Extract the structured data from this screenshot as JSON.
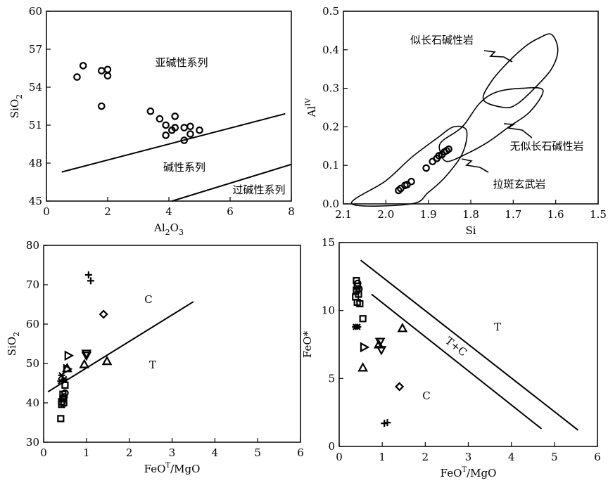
{
  "chart_data": [
    {
      "id": "a",
      "type": "scatter",
      "title": "",
      "xlim": [
        0,
        8
      ],
      "ylim": [
        45,
        60
      ],
      "xticks": [
        "0",
        "2",
        "4",
        "6",
        "8"
      ],
      "yticks": [
        "45",
        "48",
        "51",
        "54",
        "57",
        "60"
      ],
      "xlabel": {
        "base": "Al",
        "sub": "2",
        "mid": "O",
        "sub2": "3"
      },
      "ylabel": {
        "base": "SiO",
        "sub": "2"
      },
      "annotations": [
        "亚碱性系列",
        "碱性系列",
        "过碱性系列"
      ],
      "lines": [
        [
          [
            0.5,
            47.3
          ],
          [
            7.8,
            51.9
          ]
        ],
        [
          [
            4.1,
            45.0
          ],
          [
            8.0,
            47.9
          ]
        ]
      ],
      "points": [
        [
          1.0,
          54.8
        ],
        [
          1.2,
          55.7
        ],
        [
          1.8,
          55.3
        ],
        [
          2.0,
          55.4
        ],
        [
          2.0,
          54.9
        ],
        [
          1.8,
          52.5
        ],
        [
          3.4,
          52.1
        ],
        [
          3.7,
          51.5
        ],
        [
          4.2,
          51.7
        ],
        [
          3.9,
          51.0
        ],
        [
          4.1,
          50.6
        ],
        [
          4.2,
          50.8
        ],
        [
          3.9,
          50.2
        ],
        [
          4.5,
          50.8
        ],
        [
          4.7,
          50.9
        ],
        [
          4.7,
          50.3
        ],
        [
          5.0,
          50.6
        ],
        [
          4.5,
          49.8
        ]
      ]
    },
    {
      "id": "b",
      "type": "scatter",
      "title": "",
      "xlim": [
        2.1,
        1.5
      ],
      "ylim": [
        0,
        0.5
      ],
      "xticks": [
        "2.1",
        "2.0",
        "1.9",
        "1.8",
        "1.7",
        "1.6",
        "1.5"
      ],
      "yticks": [
        "0.0",
        "0.1",
        "0.2",
        "0.3",
        "0.4",
        "0.5"
      ],
      "xlabel": {
        "base": "Si"
      },
      "ylabel": {
        "base": "Al",
        "sup": "IV"
      },
      "annotations": [
        "似长石碱性岩",
        "无似长石碱性岩",
        "拉斑玄武岩"
      ],
      "fields": {
        "feldspathoid_alkaline": [
          [
            1.71,
            0.37
          ],
          [
            1.75,
            0.32
          ],
          [
            1.77,
            0.27
          ],
          [
            1.72,
            0.25
          ],
          [
            1.69,
            0.26
          ],
          [
            1.65,
            0.3
          ],
          [
            1.61,
            0.35
          ],
          [
            1.595,
            0.4
          ],
          [
            1.61,
            0.44
          ],
          [
            1.64,
            0.43
          ],
          [
            1.67,
            0.41
          ]
        ],
        "non_feldspathoid_alkaline": [
          [
            1.87,
            0.16
          ],
          [
            1.82,
            0.2
          ],
          [
            1.78,
            0.26
          ],
          [
            1.74,
            0.29
          ],
          [
            1.68,
            0.3
          ],
          [
            1.63,
            0.295
          ],
          [
            1.66,
            0.24
          ],
          [
            1.71,
            0.2
          ],
          [
            1.76,
            0.16
          ],
          [
            1.81,
            0.13
          ],
          [
            1.855,
            0.11
          ],
          [
            1.87,
            0.13
          ]
        ],
        "tholeiite": [
          [
            2.08,
            0.0
          ],
          [
            2.0,
            0.06
          ],
          [
            1.94,
            0.12
          ],
          [
            1.88,
            0.17
          ],
          [
            1.84,
            0.2
          ],
          [
            1.81,
            0.19
          ],
          [
            1.82,
            0.13
          ],
          [
            1.86,
            0.07
          ],
          [
            1.9,
            0.03
          ],
          [
            1.94,
            0.0
          ]
        ]
      },
      "points": [
        [
          1.97,
          0.035
        ],
        [
          1.965,
          0.04
        ],
        [
          1.955,
          0.048
        ],
        [
          1.95,
          0.05
        ],
        [
          1.94,
          0.058
        ],
        [
          1.905,
          0.093
        ],
        [
          1.89,
          0.11
        ],
        [
          1.88,
          0.118
        ],
        [
          1.875,
          0.125
        ],
        [
          1.868,
          0.128
        ],
        [
          1.862,
          0.135
        ],
        [
          1.857,
          0.138
        ],
        [
          1.852,
          0.142
        ]
      ]
    },
    {
      "id": "c",
      "type": "scatter",
      "title": "",
      "xlim": [
        0,
        6
      ],
      "ylim": [
        30,
        80
      ],
      "xticks": [
        "0",
        "1",
        "2",
        "3",
        "4",
        "5",
        "6"
      ],
      "yticks": [
        "30",
        "40",
        "50",
        "60",
        "70",
        "80"
      ],
      "xlabel": {
        "base": "FeO",
        "sup": "T",
        "tail": "/MgO"
      },
      "ylabel": {
        "base": "SiO",
        "sub": "2"
      },
      "annotations": [
        "C",
        "T"
      ],
      "lines": [
        [
          [
            0.1,
            42.8
          ],
          [
            3.5,
            65.7
          ]
        ]
      ],
      "series": [
        {
          "marker": "plus",
          "points": [
            [
              1.05,
              72.5
            ],
            [
              1.1,
              71.0
            ]
          ]
        },
        {
          "marker": "diamond",
          "points": [
            [
              1.4,
              62.5
            ]
          ]
        },
        {
          "marker": "tri-right",
          "points": [
            [
              0.58,
              52.0
            ],
            [
              0.55,
              48.6
            ]
          ]
        },
        {
          "marker": "tri-down",
          "points": [
            [
              1.0,
              52.5
            ],
            [
              1.0,
              52.0
            ]
          ]
        },
        {
          "marker": "tri-up",
          "points": [
            [
              0.95,
              49.8
            ],
            [
              1.48,
              50.6
            ],
            [
              0.55,
              48.8
            ]
          ]
        },
        {
          "marker": "star",
          "points": [
            [
              0.42,
              47.0
            ],
            [
              0.48,
              46.0
            ],
            [
              0.4,
              45.5
            ]
          ]
        },
        {
          "marker": "square",
          "points": [
            [
              0.5,
              44.5
            ],
            [
              0.45,
              42.2
            ],
            [
              0.45,
              41.0
            ],
            [
              0.42,
              40.3
            ],
            [
              0.42,
              39.6
            ],
            [
              0.47,
              40.0
            ],
            [
              0.4,
              36.0
            ]
          ]
        },
        {
          "marker": "circle",
          "points": [
            [
              0.5,
              42.5
            ],
            [
              0.48,
              41.5
            ]
          ]
        }
      ]
    },
    {
      "id": "d",
      "type": "scatter",
      "title": "",
      "xlim": [
        0,
        6
      ],
      "ylim": [
        0,
        15
      ],
      "xticks": [
        "0",
        "1",
        "2",
        "3",
        "4",
        "5",
        "6"
      ],
      "yticks": [
        "0",
        "5",
        "10",
        "15"
      ],
      "xlabel": {
        "base": "FeO",
        "sup": "T",
        "tail": "/MgO"
      },
      "ylabel": {
        "base": "FeO*"
      },
      "annotations": [
        "T",
        "T+C",
        "C"
      ],
      "lines": [
        [
          [
            0.5,
            13.7
          ],
          [
            5.55,
            1.2
          ]
        ],
        [
          [
            0.75,
            11.2
          ],
          [
            4.7,
            1.3
          ]
        ]
      ],
      "series": [
        {
          "marker": "square",
          "points": [
            [
              0.4,
              12.2
            ],
            [
              0.42,
              11.8
            ],
            [
              0.4,
              11.5
            ],
            [
              0.45,
              11.2
            ],
            [
              0.38,
              11.0
            ],
            [
              0.42,
              10.6
            ],
            [
              0.48,
              10.5
            ],
            [
              0.55,
              9.4
            ]
          ]
        },
        {
          "marker": "circle",
          "points": [
            [
              0.43,
              12.0
            ],
            [
              0.46,
              11.6
            ]
          ]
        },
        {
          "marker": "star",
          "points": [
            [
              0.38,
              8.8
            ],
            [
              0.43,
              8.8
            ]
          ]
        },
        {
          "marker": "tri-right",
          "points": [
            [
              0.58,
              7.3
            ]
          ]
        },
        {
          "marker": "tri-down",
          "points": [
            [
              0.95,
              7.7
            ],
            [
              0.98,
              7.1
            ]
          ]
        },
        {
          "marker": "tri-up",
          "points": [
            [
              0.92,
              7.5
            ],
            [
              1.47,
              8.7
            ],
            [
              0.55,
              5.8
            ]
          ]
        },
        {
          "marker": "diamond",
          "points": [
            [
              1.4,
              4.4
            ]
          ]
        },
        {
          "marker": "plus",
          "points": [
            [
              1.05,
              1.7
            ],
            [
              1.12,
              1.75
            ]
          ]
        }
      ]
    }
  ],
  "colors": {
    "ink": "#000000",
    "background": "#ffffff"
  }
}
